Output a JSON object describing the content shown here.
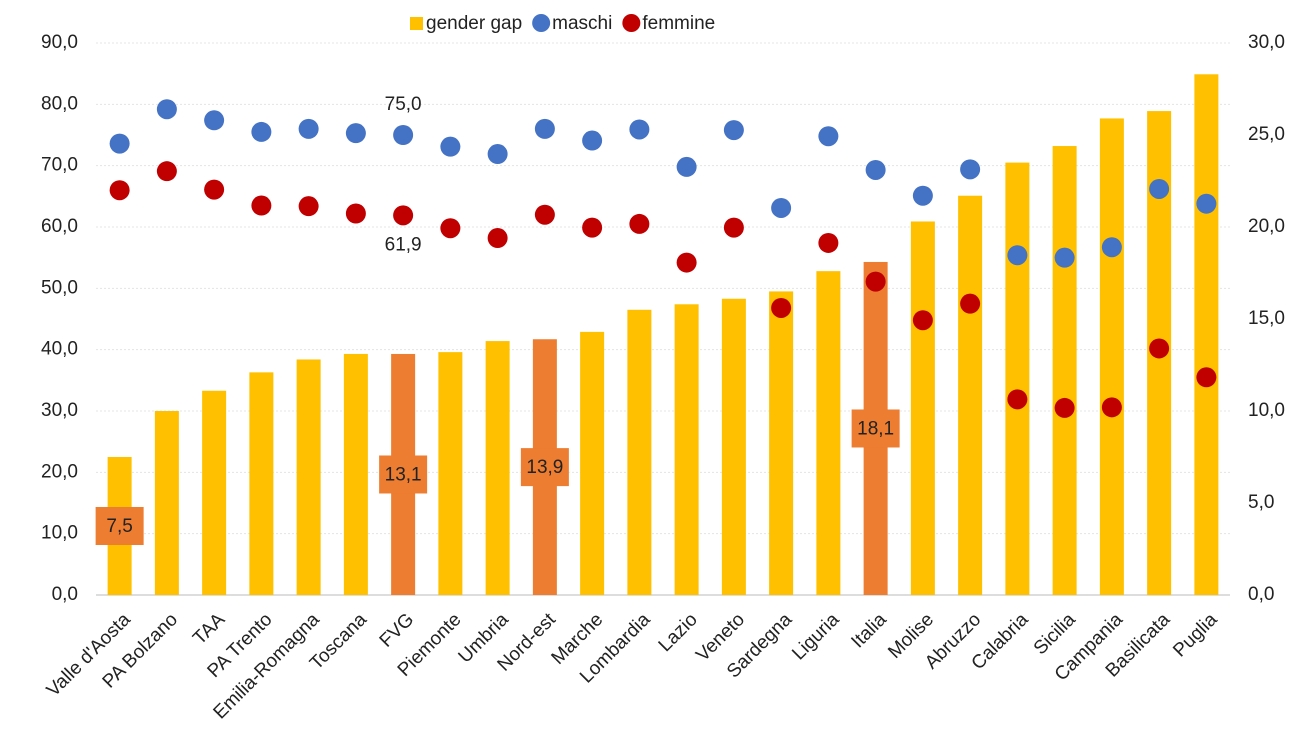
{
  "chart_data": {
    "type": "bar_dot",
    "categories": [
      "Valle d'Aosta",
      "PA Bolzano",
      "TAA",
      "PA Trento",
      "Emilia-Romagna",
      "Toscana",
      "FVG",
      "Piemonte",
      "Umbria",
      "Nord-est",
      "Marche",
      "Lombardia",
      "Lazio",
      "Veneto",
      "Sardegna",
      "Liguria",
      "Italia",
      "Molise",
      "Abruzzo",
      "Calabria",
      "Sicilia",
      "Campania",
      "Basilicata",
      "Puglia"
    ],
    "series": [
      {
        "name": "gender gap",
        "color": "#ffc000",
        "axis": "y2",
        "colors": [
          "#ffc000",
          "#ffc000",
          "#ffc000",
          "#ffc000",
          "#ffc000",
          "#ffc000",
          "#ed7d31",
          "#ffc000",
          "#ffc000",
          "#ed7d31",
          "#ffc000",
          "#ffc000",
          "#ffc000",
          "#ffc000",
          "#ffc000",
          "#ffc000",
          "#ed7d31",
          "#ffc000",
          "#ffc000",
          "#ffc000",
          "#ffc000",
          "#ffc000",
          "#ffc000",
          "#ffc000"
        ],
        "values": [
          7.5,
          10.0,
          11.1,
          12.1,
          12.8,
          13.1,
          13.1,
          13.2,
          13.8,
          13.9,
          14.3,
          15.5,
          15.8,
          16.1,
          16.5,
          17.6,
          18.1,
          20.3,
          21.7,
          23.5,
          24.4,
          25.9,
          26.3,
          28.3
        ],
        "value_labels": [
          "7,5",
          null,
          null,
          null,
          null,
          null,
          "13,1",
          null,
          null,
          "13,9",
          null,
          null,
          null,
          null,
          null,
          null,
          "18,1",
          null,
          null,
          null,
          null,
          null,
          null,
          null
        ]
      },
      {
        "name": "maschi",
        "color": "#4472c4",
        "values": [
          73.6,
          79.2,
          77.4,
          75.5,
          76.0,
          75.3,
          75.0,
          73.1,
          71.9,
          76.0,
          74.1,
          75.9,
          69.8,
          75.8,
          63.1,
          74.8,
          69.3,
          65.1,
          69.4,
          55.4,
          55.0,
          56.7,
          66.2,
          63.8
        ],
        "value_labels": [
          null,
          null,
          null,
          null,
          null,
          null,
          "75,0",
          null,
          null,
          null,
          null,
          null,
          null,
          null,
          null,
          null,
          null,
          null,
          null,
          null,
          null,
          null,
          null,
          null
        ]
      },
      {
        "name": "femmine",
        "color": "#c00000",
        "values": [
          66.0,
          69.1,
          66.1,
          63.5,
          63.4,
          62.2,
          61.9,
          59.8,
          58.2,
          62.0,
          59.9,
          60.5,
          54.2,
          59.9,
          46.8,
          57.4,
          51.1,
          44.8,
          47.5,
          31.9,
          30.5,
          30.6,
          40.2,
          35.5
        ],
        "value_labels": [
          null,
          null,
          null,
          null,
          null,
          null,
          "61,9",
          null,
          null,
          null,
          null,
          null,
          null,
          null,
          null,
          null,
          null,
          null,
          null,
          null,
          null,
          null,
          null,
          null
        ]
      }
    ],
    "ylim": [
      0,
      90
    ],
    "yticks": [
      {
        "value": 0,
        "label": "0,0"
      },
      {
        "value": 10,
        "label": "10,0"
      },
      {
        "value": 20,
        "label": "20,0"
      },
      {
        "value": 30,
        "label": "30,0"
      },
      {
        "value": 40,
        "label": "40,0"
      },
      {
        "value": 50,
        "label": "50,0"
      },
      {
        "value": 60,
        "label": "60,0"
      },
      {
        "value": 70,
        "label": "70,0"
      },
      {
        "value": 80,
        "label": "80,0"
      },
      {
        "value": 90,
        "label": "90,0"
      }
    ],
    "y2lim": [
      0,
      30
    ],
    "y2ticks": [
      {
        "value": 0,
        "label": "0,0"
      },
      {
        "value": 5,
        "label": "5,0"
      },
      {
        "value": 10,
        "label": "10,0"
      },
      {
        "value": 15,
        "label": "15,0"
      },
      {
        "value": 20,
        "label": "20,0"
      },
      {
        "value": 25,
        "label": "25,0"
      },
      {
        "value": 30,
        "label": "30,0"
      }
    ],
    "grid": true,
    "legend": "top"
  }
}
